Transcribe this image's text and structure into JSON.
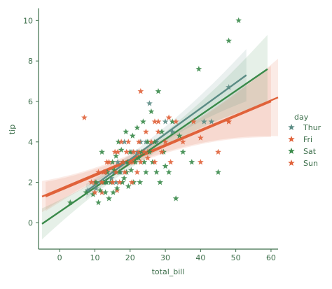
{
  "colors": {
    "axis": "#3c6e4a",
    "text": "#3c6e4a",
    "Thur": "#5b8c85",
    "Fri": "#e0623a",
    "Sat": "#3a8a4a",
    "Sun": "#e0623a"
  },
  "chart_data": {
    "type": "scatter",
    "xlabel": "total_bill",
    "ylabel": "tip",
    "xlim": [
      -6,
      62
    ],
    "ylim": [
      -1.3,
      10.6
    ],
    "xticks": [
      "0",
      "10",
      "20",
      "30",
      "40",
      "50",
      "60"
    ],
    "yticks": [
      "0",
      "2",
      "4",
      "6",
      "8",
      "10"
    ],
    "grid": false,
    "legend": {
      "title": "day",
      "placement": "right"
    },
    "marker": "star",
    "series": [
      {
        "name": "Thur",
        "points": [
          [
            8.0,
            1.6
          ],
          [
            10.3,
            1.7
          ],
          [
            12.5,
            2.0
          ],
          [
            13.0,
            2.0
          ],
          [
            13.5,
            2.5
          ],
          [
            14.7,
            2.2
          ],
          [
            15.5,
            2.5
          ],
          [
            16.0,
            2.0
          ],
          [
            16.5,
            3.0
          ],
          [
            17.3,
            2.5
          ],
          [
            18.0,
            3.0
          ],
          [
            18.4,
            4.0
          ],
          [
            19.5,
            3.0
          ],
          [
            20.5,
            3.5
          ],
          [
            22.0,
            3.5
          ],
          [
            23.0,
            4.0
          ],
          [
            24.5,
            4.0
          ],
          [
            25.5,
            5.9
          ],
          [
            27.5,
            4.0
          ],
          [
            30.0,
            5.0
          ],
          [
            32.0,
            4.5
          ],
          [
            41.0,
            5.0
          ],
          [
            43.1,
            5.0
          ],
          [
            48.0,
            6.7
          ]
        ],
        "fit": {
          "x": [
            7.5,
            53
          ],
          "y": [
            1.55,
            7.3
          ]
        }
      },
      {
        "name": "Fri",
        "points": [
          [
            7.0,
            5.2
          ],
          [
            10.0,
            2.0
          ],
          [
            12.0,
            1.5
          ],
          [
            12.5,
            2.5
          ],
          [
            13.4,
            3.0
          ],
          [
            15.0,
            2.0
          ],
          [
            15.7,
            3.5
          ],
          [
            16.3,
            1.6
          ],
          [
            18.0,
            3.0
          ],
          [
            20.0,
            3.0
          ],
          [
            21.0,
            3.0
          ],
          [
            22.5,
            3.5
          ],
          [
            23.0,
            6.5
          ],
          [
            25.0,
            3.5
          ],
          [
            27.0,
            5.0
          ],
          [
            28.0,
            4.5
          ],
          [
            31.0,
            5.2
          ],
          [
            40.0,
            4.2
          ],
          [
            40.0,
            3.0
          ],
          [
            48.0,
            5.0
          ]
        ],
        "fit": {
          "x": [
            -4,
            60
          ],
          "y": [
            1.3,
            6.0
          ]
        }
      },
      {
        "name": "Sat",
        "points": [
          [
            3.0,
            1.0
          ],
          [
            7.5,
            1.5
          ],
          [
            9.5,
            1.4
          ],
          [
            10.3,
            2.0
          ],
          [
            11.0,
            1.0
          ],
          [
            11.5,
            1.6
          ],
          [
            12.0,
            3.5
          ],
          [
            12.5,
            2.0
          ],
          [
            13.0,
            1.5
          ],
          [
            13.3,
            2.0
          ],
          [
            13.5,
            2.5
          ],
          [
            14.0,
            1.2
          ],
          [
            14.5,
            2.0
          ],
          [
            15.0,
            3.0
          ],
          [
            15.2,
            1.5
          ],
          [
            15.5,
            2.6
          ],
          [
            16.0,
            3.3
          ],
          [
            16.3,
            1.7
          ],
          [
            16.7,
            4.0
          ],
          [
            17.0,
            2.5
          ],
          [
            17.5,
            3.6
          ],
          [
            17.8,
            2.0
          ],
          [
            18.0,
            3.0
          ],
          [
            18.3,
            2.2
          ],
          [
            18.8,
            4.5
          ],
          [
            19.0,
            2.5
          ],
          [
            19.3,
            3.0
          ],
          [
            19.5,
            1.8
          ],
          [
            20.0,
            3.5
          ],
          [
            20.3,
            2.6
          ],
          [
            20.7,
            4.3
          ],
          [
            21.0,
            2.0
          ],
          [
            21.5,
            3.0
          ],
          [
            22.0,
            4.7
          ],
          [
            22.4,
            3.2
          ],
          [
            22.8,
            2.0
          ],
          [
            23.3,
            3.5
          ],
          [
            23.7,
            5.0
          ],
          [
            24.0,
            3.0
          ],
          [
            24.5,
            2.5
          ],
          [
            25.0,
            4.0
          ],
          [
            25.5,
            3.5
          ],
          [
            26.0,
            5.5
          ],
          [
            26.4,
            3.0
          ],
          [
            27.0,
            4.0
          ],
          [
            27.5,
            2.5
          ],
          [
            28.0,
            6.5
          ],
          [
            28.5,
            2.0
          ],
          [
            29.0,
            4.5
          ],
          [
            29.5,
            3.5
          ],
          [
            30.0,
            2.8
          ],
          [
            31.0,
            2.5
          ],
          [
            32.0,
            5.0
          ],
          [
            33.0,
            1.2
          ],
          [
            34.0,
            4.3
          ],
          [
            35.0,
            3.5
          ],
          [
            37.5,
            3.0
          ],
          [
            39.5,
            7.6
          ],
          [
            45.0,
            2.5
          ],
          [
            48.0,
            9.0
          ],
          [
            50.8,
            10.0
          ]
        ],
        "fit": {
          "x": [
            -5,
            59
          ],
          "y": [
            -0.05,
            7.6
          ]
        }
      },
      {
        "name": "Sun",
        "points": [
          [
            9.0,
            2.0
          ],
          [
            10.0,
            1.5
          ],
          [
            11.0,
            2.5
          ],
          [
            12.0,
            2.0
          ],
          [
            13.0,
            2.5
          ],
          [
            14.0,
            3.0
          ],
          [
            15.0,
            2.0
          ],
          [
            16.0,
            2.5
          ],
          [
            16.5,
            3.5
          ],
          [
            17.0,
            2.0
          ],
          [
            17.5,
            4.0
          ],
          [
            18.0,
            3.0
          ],
          [
            18.5,
            2.5
          ],
          [
            19.0,
            3.5
          ],
          [
            19.5,
            4.0
          ],
          [
            20.0,
            3.0
          ],
          [
            20.5,
            2.0
          ],
          [
            21.0,
            3.5
          ],
          [
            22.0,
            2.5
          ],
          [
            22.5,
            4.0
          ],
          [
            23.0,
            3.0
          ],
          [
            24.0,
            3.5
          ],
          [
            24.5,
            4.5
          ],
          [
            25.0,
            3.2
          ],
          [
            26.0,
            4.0
          ],
          [
            27.0,
            3.0
          ],
          [
            28.0,
            5.0
          ],
          [
            29.0,
            3.5
          ],
          [
            30.0,
            4.0
          ],
          [
            31.5,
            3.0
          ],
          [
            33.0,
            5.0
          ],
          [
            35.0,
            4.0
          ],
          [
            38.0,
            5.0
          ],
          [
            45.0,
            3.5
          ],
          [
            48.0,
            5.0
          ]
        ],
        "fit": {
          "x": [
            -5,
            62
          ],
          "y": [
            1.3,
            6.2
          ]
        }
      }
    ]
  }
}
